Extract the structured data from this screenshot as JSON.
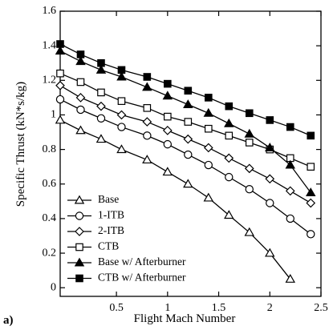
{
  "panel_label": "a)",
  "chart_data": {
    "type": "line",
    "xlabel": "Flight Mach Number",
    "ylabel": "Specific Thrust (kN*s/kg)",
    "xlim": [
      -0.05,
      2.5
    ],
    "ylim": [
      -0.05,
      1.6
    ],
    "xticks": [
      0.5,
      1,
      1.5,
      2,
      2.5
    ],
    "xtick_labels": [
      "0.5",
      "1",
      "1.5",
      "2",
      "2.5"
    ],
    "yticks": [
      0,
      0.2,
      0.4,
      0.6,
      0.8,
      1,
      1.2,
      1.4,
      1.6
    ],
    "ytick_labels": [
      "0",
      "0.2",
      "0.4",
      "0.6",
      "0.8",
      "1",
      "1.2",
      "1.4",
      "1.6"
    ],
    "grid": false,
    "legend_position": "bottom-left",
    "series": [
      {
        "name": "Base",
        "marker": "triangle-open",
        "x": [
          -0.05,
          0.15,
          0.35,
          0.55,
          0.8,
          1.0,
          1.2,
          1.4,
          1.6,
          1.8,
          2.0,
          2.2
        ],
        "y": [
          0.97,
          0.91,
          0.86,
          0.8,
          0.74,
          0.67,
          0.6,
          0.52,
          0.42,
          0.32,
          0.2,
          0.05
        ]
      },
      {
        "name": "1-ITB",
        "marker": "circle-open",
        "x": [
          -0.05,
          0.15,
          0.35,
          0.55,
          0.8,
          1.0,
          1.2,
          1.4,
          1.6,
          1.8,
          2.0,
          2.2,
          2.4
        ],
        "y": [
          1.09,
          1.03,
          0.98,
          0.93,
          0.88,
          0.83,
          0.77,
          0.71,
          0.64,
          0.57,
          0.49,
          0.4,
          0.31
        ]
      },
      {
        "name": "2-ITB",
        "marker": "diamond-open",
        "x": [
          -0.05,
          0.15,
          0.35,
          0.55,
          0.8,
          1.0,
          1.2,
          1.4,
          1.6,
          1.8,
          2.0,
          2.2,
          2.4
        ],
        "y": [
          1.17,
          1.1,
          1.05,
          1.0,
          0.96,
          0.91,
          0.86,
          0.81,
          0.75,
          0.69,
          0.63,
          0.56,
          0.49
        ]
      },
      {
        "name": "CTB",
        "marker": "square-open",
        "x": [
          -0.05,
          0.15,
          0.35,
          0.55,
          0.8,
          1.0,
          1.2,
          1.4,
          1.6,
          1.8,
          2.0,
          2.2,
          2.4
        ],
        "y": [
          1.24,
          1.19,
          1.13,
          1.08,
          1.04,
          0.99,
          0.96,
          0.92,
          0.88,
          0.84,
          0.8,
          0.75,
          0.7
        ]
      },
      {
        "name": "Base w/ Afterburner",
        "marker": "triangle-filled",
        "x": [
          -0.05,
          0.15,
          0.35,
          0.55,
          0.8,
          1.0,
          1.2,
          1.4,
          1.6,
          1.8,
          2.0,
          2.2,
          2.4
        ],
        "y": [
          1.37,
          1.31,
          1.26,
          1.22,
          1.16,
          1.11,
          1.06,
          1.01,
          0.95,
          0.89,
          0.81,
          0.71,
          0.55
        ]
      },
      {
        "name": "CTB w/ Afterburner",
        "marker": "square-filled",
        "x": [
          -0.05,
          0.15,
          0.35,
          0.55,
          0.8,
          1.0,
          1.2,
          1.4,
          1.6,
          1.8,
          2.0,
          2.2,
          2.4
        ],
        "y": [
          1.41,
          1.35,
          1.3,
          1.26,
          1.22,
          1.18,
          1.14,
          1.1,
          1.05,
          1.01,
          0.97,
          0.93,
          0.88
        ]
      }
    ]
  }
}
